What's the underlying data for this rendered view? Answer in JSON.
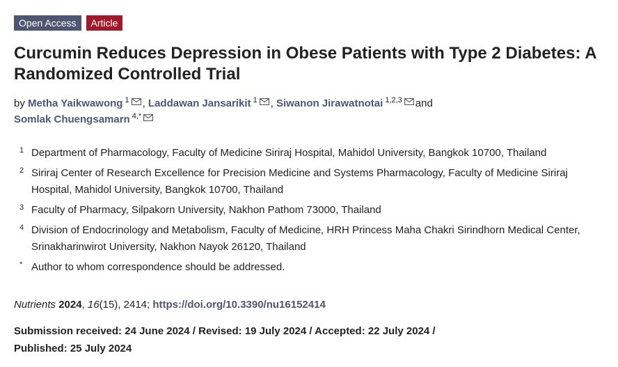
{
  "badges": {
    "open_access": "Open Access",
    "article": "Article"
  },
  "title": "Curcumin Reduces Depression in Obese Patients with Type 2 Diabetes: A Randomized Controlled Trial",
  "authors": {
    "prefix": "by",
    "list": [
      {
        "name": "Metha Yaikwawong",
        "sup": "1",
        "sep": ","
      },
      {
        "name": "Laddawan Jansarikit",
        "sup": "1",
        "sep": ","
      },
      {
        "name": "Siwanon Jirawatnotai",
        "sup": "1,2,3",
        "sep": "and"
      },
      {
        "name": "Somlak Chuengsamarn",
        "sup": "4,*",
        "sep": ""
      }
    ]
  },
  "affiliations": [
    {
      "num": "1",
      "text": "Department of Pharmacology, Faculty of Medicine Siriraj Hospital, Mahidol University, Bangkok 10700, Thailand"
    },
    {
      "num": "2",
      "text": "Siriraj Center of Research Excellence for Precision Medicine and Systems Pharmacology, Faculty of Medicine Siriraj Hospital, Mahidol University, Bangkok 10700, Thailand"
    },
    {
      "num": "3",
      "text": "Faculty of Pharmacy, Silpakorn University, Nakhon Pathom 73000, Thailand"
    },
    {
      "num": "4",
      "text": "Division of Endocrinology and Metabolism, Faculty of Medicine, HRH Princess Maha Chakri Sirindhorn Medical Center, Srinakharinwirot University, Nakhon Nayok 26120, Thailand"
    },
    {
      "num": "*",
      "text": "Author to whom correspondence should be addressed."
    }
  ],
  "citation": {
    "journal": "Nutrients",
    "year": "2024",
    "volume": "16",
    "issue": "(15)",
    "article_number": "2414",
    "doi": "https://doi.org/10.3390/nu16152414"
  },
  "dates": {
    "line1": "Submission received: 24 June 2024 / Revised: 19 July 2024 / Accepted: 22 July 2024 /",
    "line2": "Published: 25 July 2024"
  },
  "icons": {
    "author_email": "mail-icon"
  },
  "colors": {
    "link": "#4f5671",
    "open_access_badge": "#4f5671",
    "article_badge": "#9e1a2b"
  }
}
